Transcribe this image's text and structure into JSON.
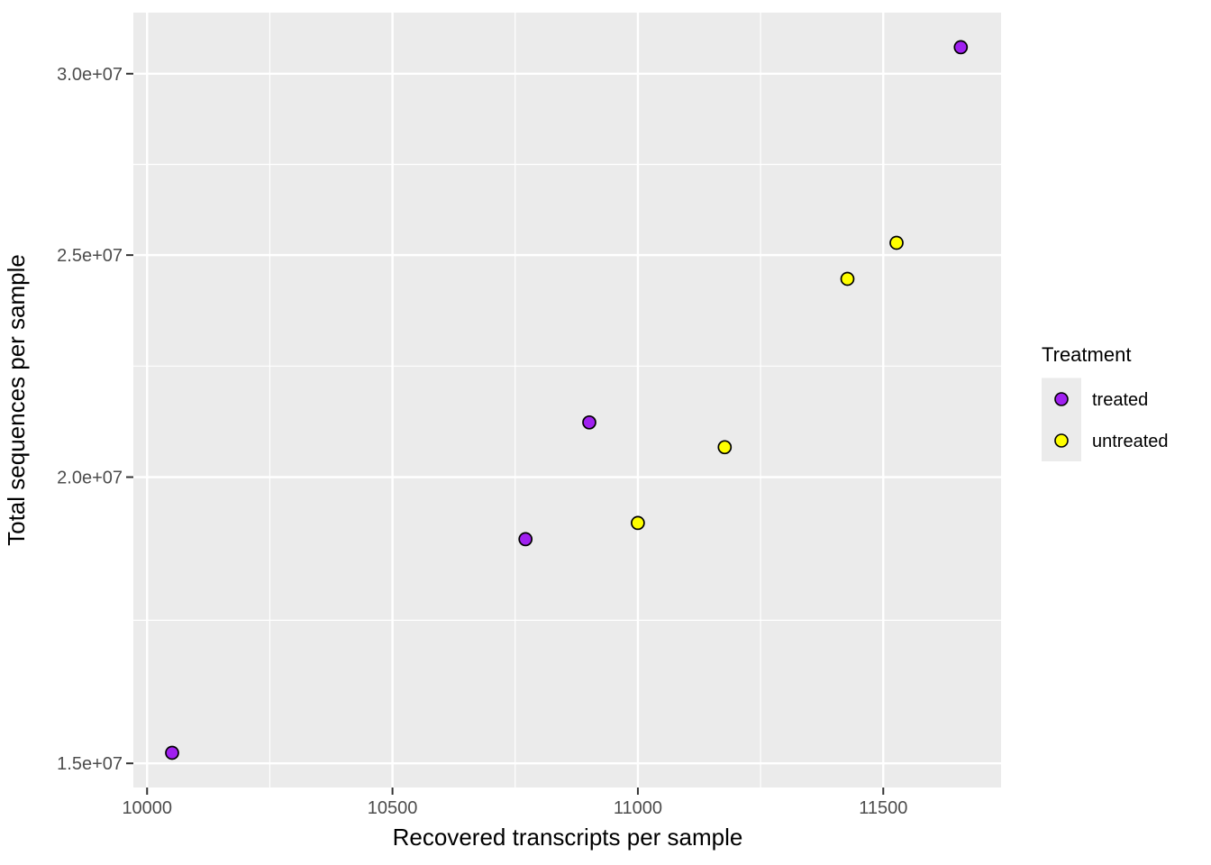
{
  "chart": {
    "x_axis_title": "Recovered transcripts per sample",
    "y_axis_title": "Total sequences per sample",
    "legend": {
      "title": "Treatment",
      "items": [
        {
          "label": "treated",
          "color": "#A020F0"
        },
        {
          "label": "untreated",
          "color": "#FFFF00"
        }
      ]
    }
  },
  "chart_data": {
    "type": "scatter",
    "title": "",
    "xlabel": "Recovered transcripts per sample",
    "ylabel": "Total sequences per sample",
    "x_scale": "linear",
    "y_scale": "log10",
    "xlim": [
      9972,
      11740
    ],
    "ylim": [
      14640000,
      31900000
    ],
    "x_ticks": {
      "values": [
        10000,
        10500,
        11000,
        11500
      ],
      "labels": [
        "10000",
        "10500",
        "11000",
        "11500"
      ]
    },
    "y_ticks": {
      "values": [
        15000000,
        20000000,
        25000000,
        30000000
      ],
      "labels": [
        "1.5e+07",
        "2.0e+07",
        "2.5e+07",
        "3.0e+07"
      ]
    },
    "x_minor": [
      10250,
      10750,
      11250
    ],
    "y_minor": [
      17320508,
      22360680,
      27386128
    ],
    "grid": true,
    "legend_position": "right",
    "panel_bg": "#EBEBEB",
    "grid_color": "#FFFFFF",
    "point_stroke": "#000000",
    "series": [
      {
        "name": "treated",
        "color": "#A020F0",
        "points": [
          [
            10051,
            15160000
          ],
          [
            10771,
            18790000
          ],
          [
            10901,
            21130000
          ],
          [
            11658,
            30810000
          ]
        ]
      },
      {
        "name": "untreated",
        "color": "#FFFF00",
        "points": [
          [
            11000,
            19100000
          ],
          [
            11177,
            20610000
          ],
          [
            11427,
            24410000
          ],
          [
            11527,
            25310000
          ]
        ]
      }
    ]
  }
}
